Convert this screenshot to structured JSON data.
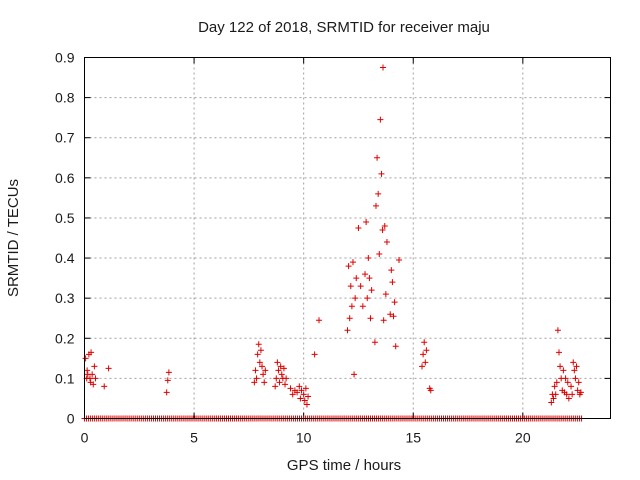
{
  "chart_data": {
    "type": "scatter",
    "title": "Day 122 of 2018, SRMTID for receiver maju",
    "xlabel": "GPS time / hours",
    "ylabel": "SRMTID / TECUs",
    "xlim": [
      0,
      24
    ],
    "ylim": [
      0,
      0.9
    ],
    "xticks": [
      0,
      5,
      10,
      15,
      20
    ],
    "xtick_labels": [
      "0",
      "5",
      "10",
      "15",
      "20"
    ],
    "yticks": [
      0,
      0.1,
      0.2,
      0.3,
      0.4,
      0.5,
      0.6,
      0.7,
      0.8,
      0.9
    ],
    "ytick_labels": [
      "0",
      "0.1",
      "0.2",
      "0.3",
      "0.4",
      "0.5",
      "0.6",
      "0.7",
      "0.8",
      "0.9"
    ],
    "grid": true,
    "marker": "+",
    "color": "#e00000",
    "series": [
      {
        "name": "SRMTID",
        "points": [
          [
            0.05,
            0.15
          ],
          [
            0.1,
            0.1
          ],
          [
            0.12,
            0.12
          ],
          [
            0.15,
            0.11
          ],
          [
            0.2,
            0.16
          ],
          [
            0.25,
            0.1
          ],
          [
            0.28,
            0.09
          ],
          [
            0.3,
            0.165
          ],
          [
            0.35,
            0.11
          ],
          [
            0.4,
            0.085
          ],
          [
            0.45,
            0.13
          ],
          [
            0.5,
            0.1
          ],
          [
            0.9,
            0.08
          ],
          [
            1.1,
            0.125
          ],
          [
            3.75,
            0.065
          ],
          [
            3.8,
            0.095
          ],
          [
            3.85,
            0.115
          ],
          [
            7.75,
            0.09
          ],
          [
            7.8,
            0.12
          ],
          [
            7.85,
            0.1
          ],
          [
            7.9,
            0.16
          ],
          [
            7.95,
            0.185
          ],
          [
            8.0,
            0.14
          ],
          [
            8.05,
            0.17
          ],
          [
            8.1,
            0.13
          ],
          [
            8.15,
            0.11
          ],
          [
            8.2,
            0.09
          ],
          [
            8.25,
            0.12
          ],
          [
            8.7,
            0.08
          ],
          [
            8.75,
            0.1
          ],
          [
            8.8,
            0.14
          ],
          [
            8.85,
            0.12
          ],
          [
            8.9,
            0.09
          ],
          [
            8.95,
            0.13
          ],
          [
            9.0,
            0.11
          ],
          [
            9.05,
            0.1
          ],
          [
            9.1,
            0.125
          ],
          [
            9.15,
            0.085
          ],
          [
            9.2,
            0.1
          ],
          [
            9.4,
            0.075
          ],
          [
            9.5,
            0.06
          ],
          [
            9.6,
            0.07
          ],
          [
            9.7,
            0.065
          ],
          [
            9.8,
            0.08
          ],
          [
            9.85,
            0.05
          ],
          [
            9.9,
            0.07
          ],
          [
            10.0,
            0.06
          ],
          [
            10.05,
            0.045
          ],
          [
            10.1,
            0.075
          ],
          [
            10.15,
            0.035
          ],
          [
            10.2,
            0.055
          ],
          [
            10.5,
            0.16
          ],
          [
            10.7,
            0.245
          ],
          [
            12.0,
            0.22
          ],
          [
            12.05,
            0.38
          ],
          [
            12.1,
            0.25
          ],
          [
            12.15,
            0.33
          ],
          [
            12.2,
            0.28
          ],
          [
            12.25,
            0.39
          ],
          [
            12.3,
            0.11
          ],
          [
            12.35,
            0.3
          ],
          [
            12.4,
            0.35
          ],
          [
            12.5,
            0.475
          ],
          [
            12.6,
            0.33
          ],
          [
            12.7,
            0.28
          ],
          [
            12.8,
            0.36
          ],
          [
            12.85,
            0.49
          ],
          [
            12.9,
            0.3
          ],
          [
            12.95,
            0.4
          ],
          [
            13.0,
            0.35
          ],
          [
            13.05,
            0.25
          ],
          [
            13.1,
            0.32
          ],
          [
            13.25,
            0.19
          ],
          [
            13.3,
            0.53
          ],
          [
            13.35,
            0.65
          ],
          [
            13.4,
            0.56
          ],
          [
            13.45,
            0.41
          ],
          [
            13.5,
            0.745
          ],
          [
            13.55,
            0.61
          ],
          [
            13.6,
            0.47
          ],
          [
            13.62,
            0.875
          ],
          [
            13.65,
            0.245
          ],
          [
            13.7,
            0.48
          ],
          [
            13.75,
            0.31
          ],
          [
            13.8,
            0.44
          ],
          [
            13.95,
            0.26
          ],
          [
            14.0,
            0.37
          ],
          [
            14.05,
            0.34
          ],
          [
            14.1,
            0.255
          ],
          [
            14.15,
            0.29
          ],
          [
            14.2,
            0.18
          ],
          [
            14.35,
            0.395
          ],
          [
            15.4,
            0.13
          ],
          [
            15.45,
            0.16
          ],
          [
            15.5,
            0.19
          ],
          [
            15.55,
            0.14
          ],
          [
            15.6,
            0.17
          ],
          [
            15.75,
            0.075
          ],
          [
            15.8,
            0.07
          ],
          [
            21.3,
            0.04
          ],
          [
            21.35,
            0.06
          ],
          [
            21.4,
            0.05
          ],
          [
            21.45,
            0.08
          ],
          [
            21.5,
            0.06
          ],
          [
            21.55,
            0.09
          ],
          [
            21.6,
            0.22
          ],
          [
            21.65,
            0.165
          ],
          [
            21.7,
            0.13
          ],
          [
            21.75,
            0.1
          ],
          [
            21.8,
            0.07
          ],
          [
            21.85,
            0.12
          ],
          [
            21.9,
            0.065
          ],
          [
            21.95,
            0.1
          ],
          [
            22.0,
            0.06
          ],
          [
            22.05,
            0.09
          ],
          [
            22.1,
            0.05
          ],
          [
            22.2,
            0.08
          ],
          [
            22.25,
            0.06
          ],
          [
            22.3,
            0.14
          ],
          [
            22.35,
            0.12
          ],
          [
            22.4,
            0.1
          ],
          [
            22.45,
            0.13
          ],
          [
            22.5,
            0.07
          ],
          [
            22.55,
            0.09
          ],
          [
            22.6,
            0.06
          ],
          [
            22.65,
            0.065
          ]
        ],
        "zero_baseline_ranges": [
          [
            0.0,
            22.7
          ]
        ]
      }
    ]
  }
}
